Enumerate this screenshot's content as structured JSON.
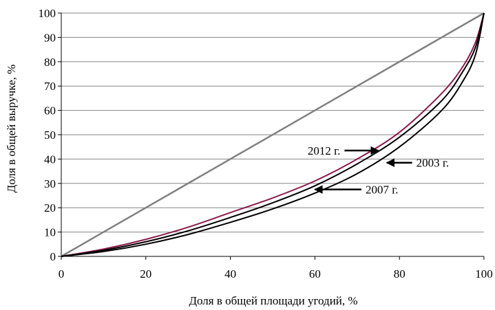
{
  "chart_data": {
    "type": "line",
    "title": "",
    "xlabel": "Доля в общей площади угодий, %",
    "ylabel": "Доля в общей выручке, %",
    "xlim": [
      0,
      100
    ],
    "ylim": [
      0,
      100
    ],
    "x_ticks": [
      "0",
      "20",
      "40",
      "60",
      "80",
      "100"
    ],
    "y_ticks": [
      "0",
      "10",
      "20",
      "30",
      "40",
      "50",
      "60",
      "70",
      "80",
      "90",
      "100"
    ],
    "grid": "horizontal",
    "legend": "none",
    "series": [
      {
        "name": "2012 г.",
        "color": "#8b1a4a",
        "x": [
          0,
          10,
          20,
          30,
          40,
          50,
          60,
          70,
          80,
          90,
          95,
          98,
          100
        ],
        "y": [
          0,
          3,
          7,
          12,
          18,
          24,
          31,
          40,
          51,
          67,
          78,
          88,
          100
        ]
      },
      {
        "name": "2003 г.",
        "color": "#000000",
        "x": [
          0,
          10,
          20,
          30,
          40,
          50,
          60,
          70,
          80,
          90,
          95,
          98,
          100
        ],
        "y": [
          0,
          2.5,
          6,
          10.5,
          16,
          22,
          29,
          38,
          49,
          64,
          76,
          86,
          100
        ]
      },
      {
        "name": "2007 г.",
        "color": "#000000",
        "x": [
          0,
          10,
          20,
          30,
          40,
          50,
          60,
          70,
          80,
          90,
          95,
          98,
          100
        ],
        "y": [
          0,
          2,
          5,
          9,
          14,
          19.5,
          26,
          34,
          45,
          60,
          72,
          83,
          100
        ]
      },
      {
        "name": "",
        "color": "#808080",
        "x": [
          0,
          100
        ],
        "y": [
          0,
          100
        ]
      }
    ],
    "annotations": [
      {
        "label": "2012 г.",
        "series": "2012 г.",
        "arrow_to": [
          75,
          43.5
        ],
        "arrow_from": [
          67,
          43.5
        ],
        "label_side": "left"
      },
      {
        "label": "2003 г.",
        "series": "2003 г.",
        "arrow_to": [
          77,
          38.5
        ],
        "arrow_from": [
          83,
          38.5
        ],
        "label_side": "right"
      },
      {
        "label": "2007 г.",
        "series": "2007 г.",
        "arrow_to": [
          60,
          27.5
        ],
        "arrow_from": [
          71,
          27.5
        ],
        "label_side": "right"
      }
    ]
  }
}
